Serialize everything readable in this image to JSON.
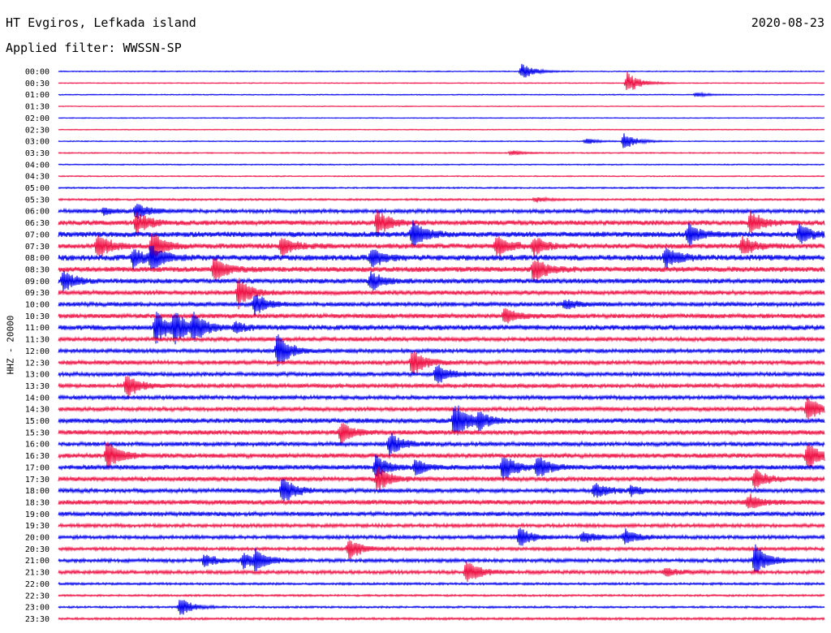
{
  "header": {
    "station": "HT Evgiros, Lefkada island",
    "date": "2020-08-23",
    "filter": "Applied filter: WWSSN-SP"
  },
  "chart_data": {
    "type": "line",
    "title": "HT Evgiros, Lefkada island",
    "ylabel": "HHZ - 20000",
    "row_labels": [
      "00:00",
      "00:30",
      "01:00",
      "01:30",
      "02:00",
      "02:30",
      "03:00",
      "03:30",
      "04:00",
      "04:30",
      "05:00",
      "05:30",
      "06:00",
      "06:30",
      "07:00",
      "07:30",
      "08:00",
      "08:30",
      "09:00",
      "09:30",
      "10:00",
      "10:30",
      "11:00",
      "11:30",
      "12:00",
      "12:30",
      "13:00",
      "13:30",
      "14:00",
      "14:30",
      "15:00",
      "15:30",
      "16:00",
      "16:30",
      "17:00",
      "17:30",
      "18:00",
      "18:30",
      "19:00",
      "19:30",
      "20:00",
      "20:30",
      "21:00",
      "21:30",
      "22:00",
      "22:30",
      "23:00",
      "23:30"
    ],
    "trace_colors": [
      "#0000ee",
      "#ee1144"
    ],
    "noise_levels": [
      0.6,
      0.6,
      0.6,
      0.5,
      0.5,
      0.6,
      0.6,
      0.7,
      0.7,
      0.7,
      0.9,
      1.2,
      2.4,
      3.0,
      3.4,
      3.2,
      3.6,
      3.2,
      3.0,
      2.8,
      2.6,
      2.8,
      3.2,
      2.6,
      2.4,
      2.6,
      2.6,
      2.4,
      2.4,
      2.6,
      3.0,
      2.8,
      2.6,
      2.8,
      2.8,
      2.8,
      2.6,
      2.8,
      2.6,
      2.2,
      2.2,
      2.0,
      2.2,
      2.2,
      1.4,
      1.2,
      1.2,
      1.4
    ],
    "events": [
      {
        "row": 0,
        "x": 643,
        "amp": 10
      },
      {
        "row": 1,
        "x": 773,
        "amp": 14
      },
      {
        "row": 2,
        "x": 858,
        "amp": 3
      },
      {
        "row": 6,
        "x": 722,
        "amp": 4
      },
      {
        "row": 6,
        "x": 769,
        "amp": 11
      },
      {
        "row": 7,
        "x": 630,
        "amp": 3
      },
      {
        "row": 11,
        "x": 660,
        "amp": 3
      },
      {
        "row": 12,
        "x": 128,
        "amp": 4
      },
      {
        "row": 12,
        "x": 168,
        "amp": 10
      },
      {
        "row": 13,
        "x": 168,
        "amp": 14
      },
      {
        "row": 13,
        "x": 465,
        "amp": 16
      },
      {
        "row": 13,
        "x": 925,
        "amp": 14
      },
      {
        "row": 14,
        "x": 508,
        "amp": 18
      },
      {
        "row": 14,
        "x": 848,
        "amp": 14
      },
      {
        "row": 14,
        "x": 985,
        "amp": 12
      },
      {
        "row": 15,
        "x": 120,
        "amp": 16
      },
      {
        "row": 15,
        "x": 187,
        "amp": 18
      },
      {
        "row": 15,
        "x": 347,
        "amp": 12
      },
      {
        "row": 15,
        "x": 612,
        "amp": 14
      },
      {
        "row": 15,
        "x": 658,
        "amp": 12
      },
      {
        "row": 15,
        "x": 915,
        "amp": 12
      },
      {
        "row": 16,
        "x": 164,
        "amp": 12
      },
      {
        "row": 16,
        "x": 186,
        "amp": 14
      },
      {
        "row": 16,
        "x": 457,
        "amp": 12
      },
      {
        "row": 16,
        "x": 820,
        "amp": 14
      },
      {
        "row": 17,
        "x": 264,
        "amp": 16
      },
      {
        "row": 17,
        "x": 658,
        "amp": 18
      },
      {
        "row": 18,
        "x": 78,
        "amp": 12
      },
      {
        "row": 18,
        "x": 457,
        "amp": 12
      },
      {
        "row": 19,
        "x": 294,
        "amp": 18
      },
      {
        "row": 20,
        "x": 314,
        "amp": 14
      },
      {
        "row": 20,
        "x": 696,
        "amp": 6
      },
      {
        "row": 21,
        "x": 622,
        "amp": 10
      },
      {
        "row": 22,
        "x": 192,
        "amp": 20
      },
      {
        "row": 22,
        "x": 215,
        "amp": 18
      },
      {
        "row": 22,
        "x": 238,
        "amp": 16
      },
      {
        "row": 22,
        "x": 290,
        "amp": 6
      },
      {
        "row": 24,
        "x": 342,
        "amp": 22
      },
      {
        "row": 25,
        "x": 508,
        "amp": 18
      },
      {
        "row": 26,
        "x": 538,
        "amp": 14
      },
      {
        "row": 27,
        "x": 156,
        "amp": 16
      },
      {
        "row": 29,
        "x": 995,
        "amp": 16
      },
      {
        "row": 30,
        "x": 560,
        "amp": 24
      },
      {
        "row": 30,
        "x": 590,
        "amp": 10
      },
      {
        "row": 31,
        "x": 420,
        "amp": 14
      },
      {
        "row": 32,
        "x": 480,
        "amp": 14
      },
      {
        "row": 33,
        "x": 132,
        "amp": 20
      },
      {
        "row": 33,
        "x": 995,
        "amp": 18
      },
      {
        "row": 34,
        "x": 463,
        "amp": 16
      },
      {
        "row": 34,
        "x": 512,
        "amp": 10
      },
      {
        "row": 34,
        "x": 620,
        "amp": 18
      },
      {
        "row": 34,
        "x": 662,
        "amp": 14
      },
      {
        "row": 35,
        "x": 465,
        "amp": 16
      },
      {
        "row": 35,
        "x": 930,
        "amp": 12
      },
      {
        "row": 36,
        "x": 348,
        "amp": 18
      },
      {
        "row": 36,
        "x": 733,
        "amp": 10
      },
      {
        "row": 36,
        "x": 778,
        "amp": 6
      },
      {
        "row": 37,
        "x": 922,
        "amp": 10
      },
      {
        "row": 40,
        "x": 640,
        "amp": 12
      },
      {
        "row": 40,
        "x": 718,
        "amp": 8
      },
      {
        "row": 40,
        "x": 770,
        "amp": 10
      },
      {
        "row": 41,
        "x": 430,
        "amp": 14
      },
      {
        "row": 42,
        "x": 252,
        "amp": 8
      },
      {
        "row": 42,
        "x": 300,
        "amp": 10
      },
      {
        "row": 42,
        "x": 315,
        "amp": 12
      },
      {
        "row": 42,
        "x": 930,
        "amp": 22
      },
      {
        "row": 43,
        "x": 575,
        "amp": 16
      },
      {
        "row": 43,
        "x": 820,
        "amp": 6
      },
      {
        "row": 46,
        "x": 222,
        "amp": 12
      }
    ]
  }
}
